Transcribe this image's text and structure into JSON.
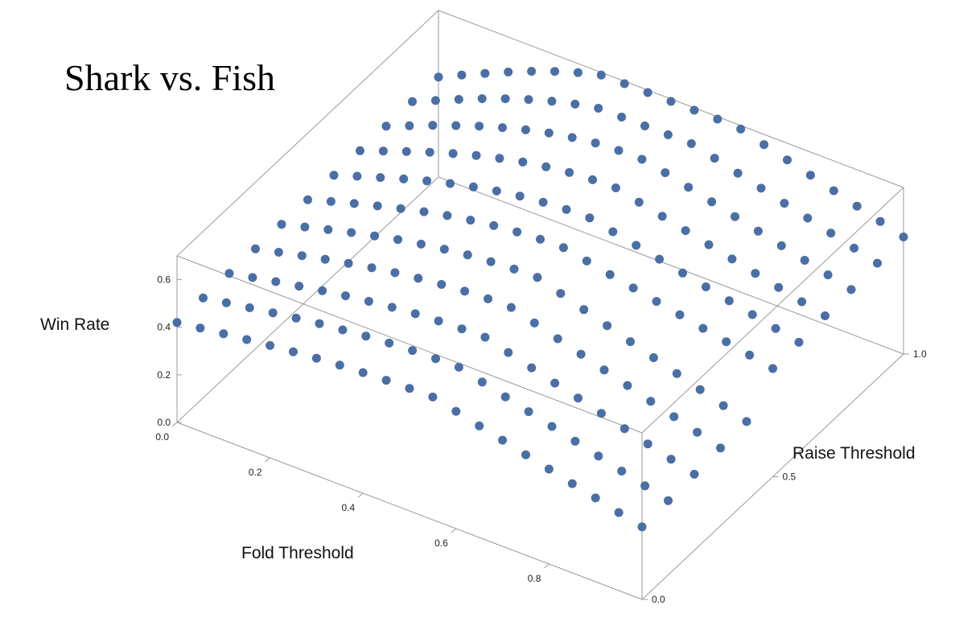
{
  "chart_data": {
    "type": "scatter3d",
    "title": "Shark vs. Fish",
    "xlabel": "Fold Threshold",
    "ylabel": "Raise Threshold",
    "zlabel": "Win Rate",
    "xlim": [
      0,
      1
    ],
    "ylim": [
      0,
      1
    ],
    "zlim": [
      0,
      0.7
    ],
    "x_ticks": [
      "0.0",
      "0.2",
      "0.4",
      "0.6",
      "0.8"
    ],
    "y_ticks": [
      "0.0",
      "0.5",
      "1.0"
    ],
    "z_ticks": [
      "0.0",
      "0.2",
      "0.4",
      "0.6"
    ],
    "grid": false,
    "point_color": "#4a6fa5",
    "description_of_data": "Grid of win rates over fold threshold (x) and raise threshold (y); values are given per point in points[] as [x, y, z].",
    "points": []
  },
  "colors": {
    "box": "#9a9a9a",
    "point": "#4a6fa5"
  }
}
